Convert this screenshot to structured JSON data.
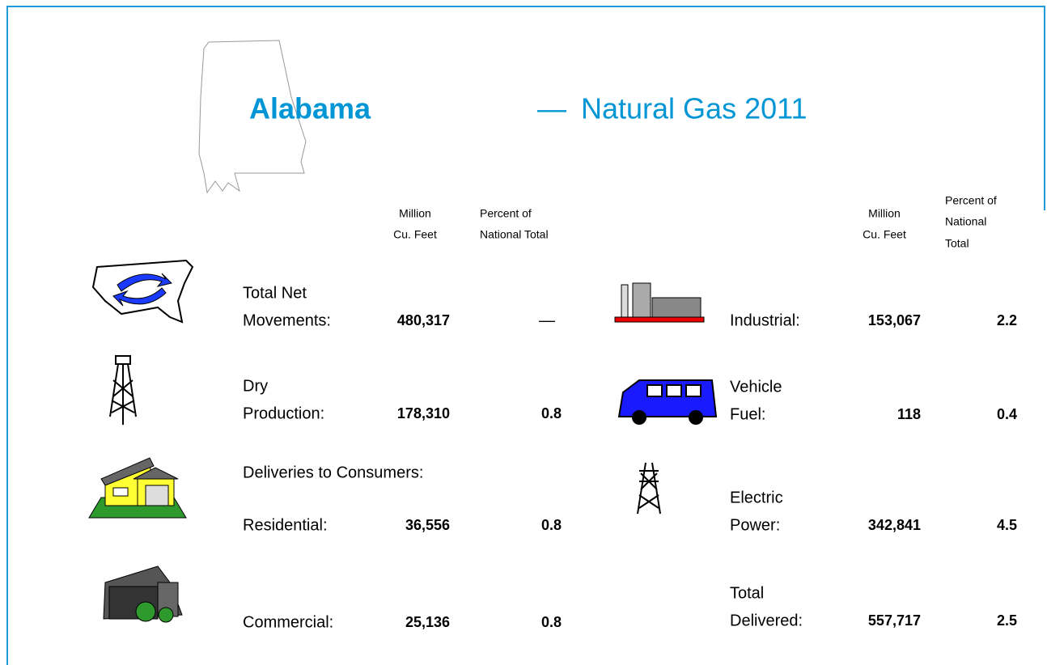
{
  "header": {
    "state": "Alabama",
    "dash": "—",
    "title": "Natural Gas 2011"
  },
  "left_columns": {
    "million": [
      "Million",
      "Cu. Feet"
    ],
    "percent": [
      "Percent of",
      "National Total"
    ]
  },
  "right_columns": {
    "million": [
      "Million",
      "Cu. Feet"
    ],
    "percent": [
      "Percent of",
      "National",
      "Total"
    ]
  },
  "deliveries_heading": "Deliveries to Consumers:",
  "left_rows": [
    {
      "label": [
        "Total Net",
        "Movements:"
      ],
      "million": "480,317",
      "percent": "—"
    },
    {
      "label": [
        "Dry",
        "Production:"
      ],
      "million": "178,310",
      "percent": "0.8"
    },
    {
      "label": [
        "Residential:"
      ],
      "million": "36,556",
      "percent": "0.8"
    },
    {
      "label": [
        "Commercial:"
      ],
      "million": "25,136",
      "percent": "0.8"
    }
  ],
  "right_rows": [
    {
      "label": [
        "Industrial:"
      ],
      "million": "153,067",
      "percent": "2.2"
    },
    {
      "label": [
        "Vehicle",
        "Fuel:"
      ],
      "million": "118",
      "percent": "0.4"
    },
    {
      "label": [
        "Electric",
        "Power:"
      ],
      "million": "342,841",
      "percent": "4.5"
    },
    {
      "label": [
        "Total",
        "Delivered:"
      ],
      "million": "557,717",
      "percent": "2.5"
    }
  ]
}
